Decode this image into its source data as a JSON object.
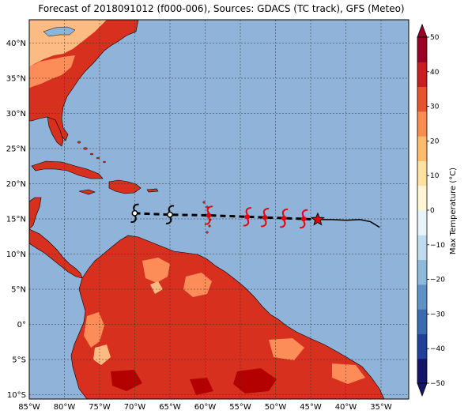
{
  "title": "Forecast of 2018091012 (f000-006), Sources: GDACS (TC track), GFS (Meteo)",
  "map": {
    "lon_ticks": [
      "85°W",
      "80°W",
      "75°W",
      "70°W",
      "65°W",
      "60°W",
      "55°W",
      "50°W",
      "45°W",
      "40°W",
      "35°W"
    ],
    "lat_ticks": [
      "40°N",
      "35°N",
      "30°N",
      "25°N",
      "20°N",
      "15°N",
      "10°N",
      "5°N",
      "0°",
      "5°S",
      "10°S"
    ],
    "colors": {
      "ocean": "#8fb3d9",
      "land_30_40": "#d7301f",
      "land_25_30": "#ef6548",
      "land_20_25": "#fc8d59",
      "land_40_plus": "#b30000",
      "land_cool": "#fdbb84"
    }
  },
  "track": {
    "past_positions": [
      [
        -70.0,
        15.8
      ],
      [
        -65.0,
        15.6
      ]
    ],
    "forecast_positions": [
      [
        -59.5,
        15.5
      ],
      [
        -54.0,
        15.3
      ],
      [
        -51.5,
        15.2
      ],
      [
        -48.8,
        15.1
      ],
      [
        -46.0,
        15.0
      ]
    ],
    "current_position": [
      -44.0,
      14.9
    ],
    "observed_path": [
      [
        -44.0,
        14.9
      ],
      [
        -42,
        14.9
      ],
      [
        -40,
        14.8
      ],
      [
        -38,
        14.9
      ],
      [
        -36.5,
        14.6
      ],
      [
        -35.2,
        13.8
      ]
    ]
  },
  "colorbar": {
    "label": "Max Temperature (°C)",
    "ticks": [
      "50",
      "40",
      "30",
      "20",
      "10",
      "0",
      "−10",
      "−20",
      "−30",
      "−40",
      "−50"
    ],
    "colors": [
      "#14146b",
      "#21409a",
      "#3a6bb0",
      "#5f93c6",
      "#8db9da",
      "#bfdcec",
      "#e8f4f8",
      "#fff6d5",
      "#fee3a0",
      "#fdbb6b",
      "#f88d52",
      "#e7522f",
      "#c91d20",
      "#9a0026"
    ]
  }
}
